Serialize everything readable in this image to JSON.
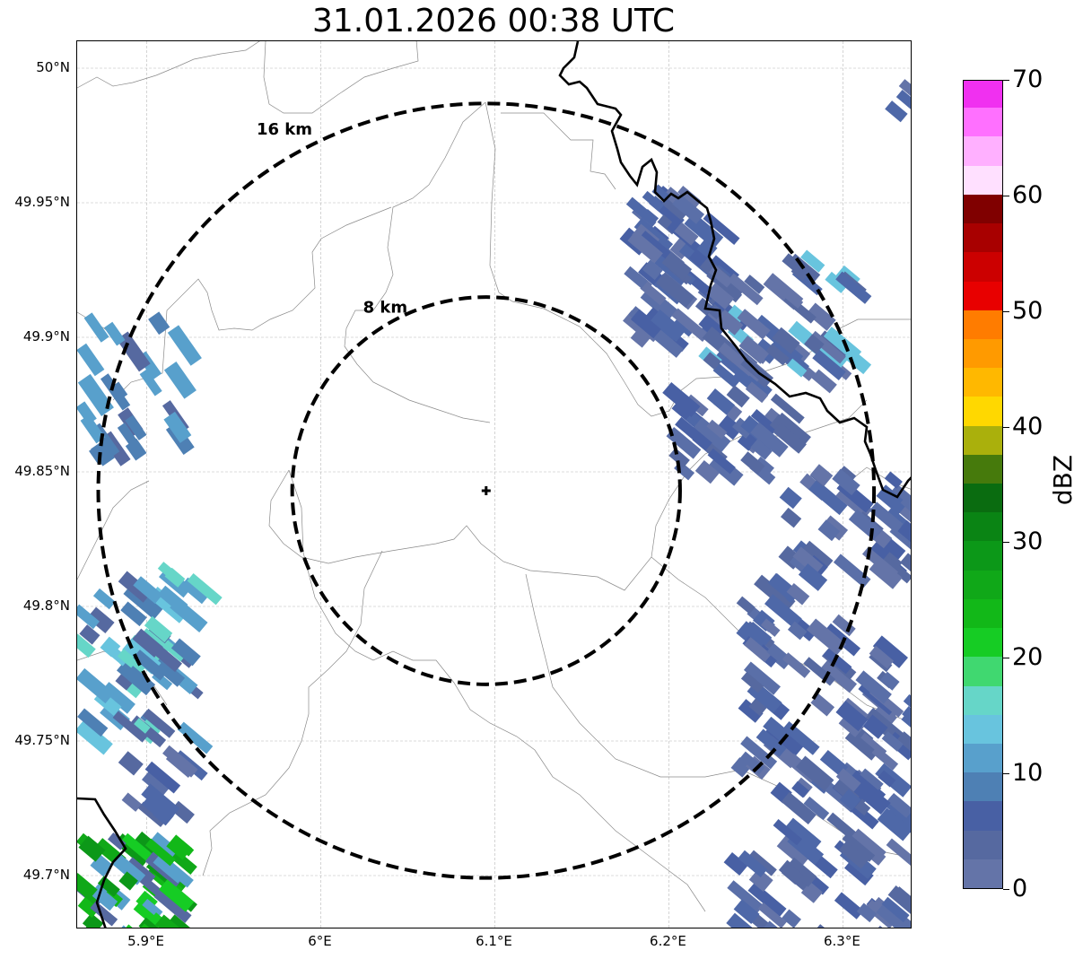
{
  "title": "31.01.2026 00:38 UTC",
  "map": {
    "extent": {
      "lon_min": 5.86,
      "lon_max": 6.34,
      "lat_min": 49.68,
      "lat_max": 50.01
    },
    "center": {
      "lon": 6.095,
      "lat": 49.843
    },
    "lat_ticks": [
      {
        "value": 50.0,
        "label": "50°N"
      },
      {
        "value": 49.95,
        "label": "49.95°N"
      },
      {
        "value": 49.9,
        "label": "49.9°N"
      },
      {
        "value": 49.85,
        "label": "49.85°N"
      },
      {
        "value": 49.8,
        "label": "49.8°N"
      },
      {
        "value": 49.75,
        "label": "49.75°N"
      },
      {
        "value": 49.7,
        "label": "49.7°N"
      }
    ],
    "lon_ticks": [
      {
        "value": 5.9,
        "label": "5.9°E"
      },
      {
        "value": 6.0,
        "label": "6°E"
      },
      {
        "value": 6.1,
        "label": "6.1°E"
      },
      {
        "value": 6.2,
        "label": "6.2°E"
      },
      {
        "value": 6.3,
        "label": "6.3°E"
      }
    ],
    "range_rings": [
      {
        "radius_km": 8,
        "label": "8 km"
      },
      {
        "radius_km": 16,
        "label": "16 km"
      }
    ],
    "grid": true
  },
  "colorbar": {
    "label": "dBZ",
    "min": 0,
    "max": 70,
    "ticks": [
      "0",
      "10",
      "20",
      "30",
      "40",
      "50",
      "60",
      "70"
    ],
    "colors": [
      "#6474a8",
      "#5669a0",
      "#4860a4",
      "#4e80b4",
      "#58a0cc",
      "#68c4de",
      "#66d6c8",
      "#40d870",
      "#16cc24",
      "#12b818",
      "#10a818",
      "#0c9818",
      "#0a8414",
      "#0a6c10",
      "#467a0c",
      "#aab00c",
      "#ffd800",
      "#ffb800",
      "#ff9a00",
      "#ff7c00",
      "#e80000",
      "#cc0000",
      "#a80000",
      "#800000",
      "#ffe0ff",
      "#ffb0ff",
      "#ff70ff",
      "#f030f0"
    ]
  }
}
